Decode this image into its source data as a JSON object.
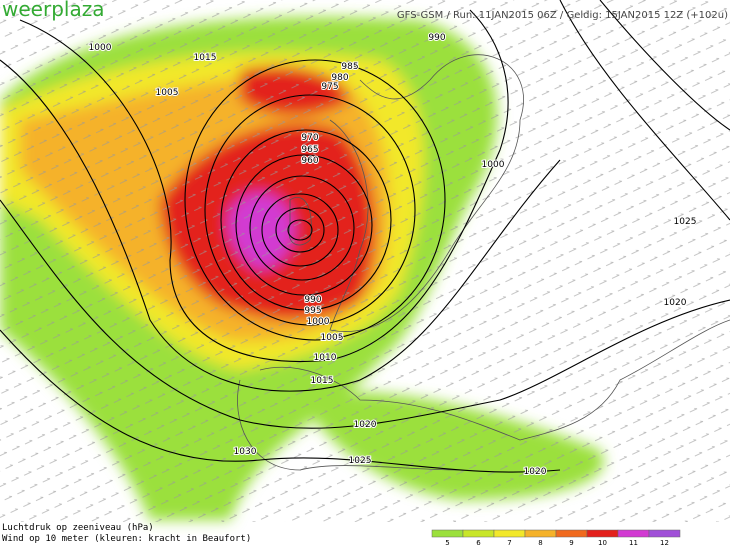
{
  "header": {
    "logo": "weerplaza",
    "run_info": "GFS-GSM / Run: 11JAN2015 06Z / Geldig: 15JAN2015 12Z (+102u)"
  },
  "isobar_labels": [
    "1000",
    "1015",
    "990",
    "1005",
    "985",
    "980",
    "975",
    "970",
    "965",
    "960",
    "1000",
    "1025",
    "1020",
    "990",
    "995",
    "1000",
    "1005",
    "1010",
    "1015",
    "1020",
    "1030",
    "1025",
    "1020"
  ],
  "footer": {
    "line1": "Luchtdruk op zeeniveau (hPa)",
    "line2": "Wind op 10 meter (kleuren: kracht in Beaufort)"
  },
  "legend": [
    {
      "label": "5",
      "color": "#9be03c"
    },
    {
      "label": "6",
      "color": "#c8e628"
    },
    {
      "label": "7",
      "color": "#f2e82a"
    },
    {
      "label": "8",
      "color": "#f5b22a"
    },
    {
      "label": "9",
      "color": "#f06a1e"
    },
    {
      "label": "10",
      "color": "#e3201c"
    },
    {
      "label": "11",
      "color": "#d23ad2"
    },
    {
      "label": "12",
      "color": "#a050d8"
    }
  ]
}
